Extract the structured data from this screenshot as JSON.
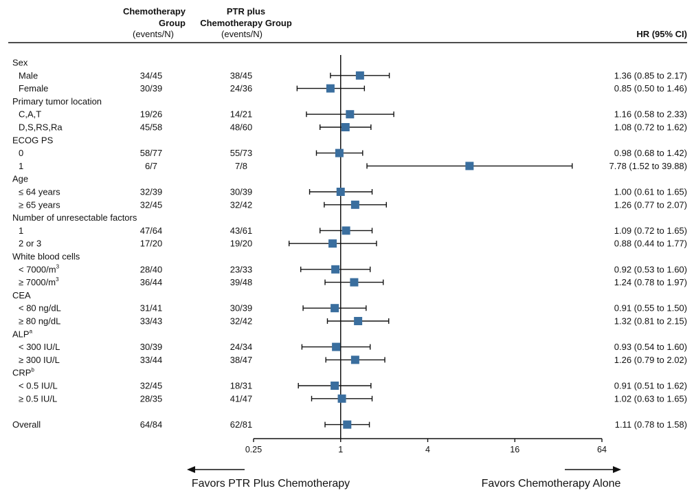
{
  "chart_data": {
    "type": "forest",
    "headers": {
      "chemo_line1": "Chemotherapy",
      "chemo_line2": "Group",
      "chemo_line3": "(events/N)",
      "ptr_line1": "PTR plus",
      "ptr_line2": "Chemotherapy Group",
      "ptr_line3": "(events/N)",
      "hr": "HR (95% CI)"
    },
    "x_axis": {
      "scale": "log2",
      "range": [
        0.25,
        64
      ],
      "ticks": [
        {
          "value": 0.25,
          "label": "0.25"
        },
        {
          "value": 1,
          "label": "1"
        },
        {
          "value": 4,
          "label": "4"
        },
        {
          "value": 16,
          "label": "16"
        },
        {
          "value": 64,
          "label": "64"
        }
      ],
      "reference_line": 1
    },
    "favors": {
      "left": "Favors PTR Plus Chemotherapy",
      "right": "Favors Chemotherapy Alone"
    },
    "marker_color": "#3a6e9e",
    "rows": [
      {
        "type": "group",
        "label": "Sex"
      },
      {
        "type": "item",
        "label": "Male",
        "chemo": "34/45",
        "ptr": "38/45",
        "hr": 1.36,
        "lo": 0.85,
        "hi": 2.17,
        "hr_text": "1.36 (0.85 to 2.17)"
      },
      {
        "type": "item",
        "label": "Female",
        "chemo": "30/39",
        "ptr": "24/36",
        "hr": 0.85,
        "lo": 0.5,
        "hi": 1.46,
        "hr_text": "0.85 (0.50 to 1.46)"
      },
      {
        "type": "group",
        "label": "Primary tumor location"
      },
      {
        "type": "item",
        "label": "C,A,T",
        "chemo": "19/26",
        "ptr": "14/21",
        "hr": 1.16,
        "lo": 0.58,
        "hi": 2.33,
        "hr_text": "1.16 (0.58 to 2.33)"
      },
      {
        "type": "item",
        "label": "D,S,RS,Ra",
        "chemo": "45/58",
        "ptr": "48/60",
        "hr": 1.08,
        "lo": 0.72,
        "hi": 1.62,
        "hr_text": "1.08 (0.72 to 1.62)"
      },
      {
        "type": "group",
        "label": "ECOG PS"
      },
      {
        "type": "item",
        "label": "0",
        "chemo": "58/77",
        "ptr": "55/73",
        "hr": 0.98,
        "lo": 0.68,
        "hi": 1.42,
        "hr_text": "0.98 (0.68 to 1.42)"
      },
      {
        "type": "item",
        "label": "1",
        "chemo": "6/7",
        "ptr": "7/8",
        "hr": 7.78,
        "lo": 1.52,
        "hi": 39.88,
        "hr_text": "7.78 (1.52 to 39.88)"
      },
      {
        "type": "group",
        "label": "Age"
      },
      {
        "type": "item",
        "label": "≤ 64 years",
        "chemo": "32/39",
        "ptr": "30/39",
        "hr": 1.0,
        "lo": 0.61,
        "hi": 1.65,
        "hr_text": "1.00 (0.61 to 1.65)"
      },
      {
        "type": "item",
        "label": "≥ 65 years",
        "chemo": "32/45",
        "ptr": "32/42",
        "hr": 1.26,
        "lo": 0.77,
        "hi": 2.07,
        "hr_text": "1.26 (0.77 to 2.07)"
      },
      {
        "type": "group",
        "label": "Number of unresectable factors"
      },
      {
        "type": "item",
        "label": "1",
        "chemo": "47/64",
        "ptr": "43/61",
        "hr": 1.09,
        "lo": 0.72,
        "hi": 1.65,
        "hr_text": "1.09 (0.72 to 1.65)"
      },
      {
        "type": "item",
        "label": "2 or 3",
        "chemo": "17/20",
        "ptr": "19/20",
        "hr": 0.88,
        "lo": 0.44,
        "hi": 1.77,
        "hr_text": "0.88 (0.44 to 1.77)"
      },
      {
        "type": "group",
        "label": "White blood cells"
      },
      {
        "type": "item",
        "label": "< 7000/m",
        "sup": "3",
        "chemo": "28/40",
        "ptr": "23/33",
        "hr": 0.92,
        "lo": 0.53,
        "hi": 1.6,
        "hr_text": "0.92 (0.53 to 1.60)"
      },
      {
        "type": "item",
        "label": "≥ 7000/m",
        "sup": "3",
        "chemo": "36/44",
        "ptr": "39/48",
        "hr": 1.24,
        "lo": 0.78,
        "hi": 1.97,
        "hr_text": "1.24 (0.78 to 1.97)"
      },
      {
        "type": "group",
        "label": "CEA"
      },
      {
        "type": "item",
        "label": "< 80 ng/dL",
        "chemo": "31/41",
        "ptr": "30/39",
        "hr": 0.91,
        "lo": 0.55,
        "hi": 1.5,
        "hr_text": "0.91 (0.55 to 1.50)"
      },
      {
        "type": "item",
        "label": "≥ 80 ng/dL",
        "chemo": "33/43",
        "ptr": "32/42",
        "hr": 1.32,
        "lo": 0.81,
        "hi": 2.15,
        "hr_text": "1.32 (0.81 to 2.15)"
      },
      {
        "type": "group",
        "label": "ALP",
        "sup": "a"
      },
      {
        "type": "item",
        "label": "< 300 IU/L",
        "chemo": "30/39",
        "ptr": "24/34",
        "hr": 0.93,
        "lo": 0.54,
        "hi": 1.6,
        "hr_text": "0.93 (0.54 to 1.60)"
      },
      {
        "type": "item",
        "label": "≥ 300 IU/L",
        "chemo": "33/44",
        "ptr": "38/47",
        "hr": 1.26,
        "lo": 0.79,
        "hi": 2.02,
        "hr_text": "1.26 (0.79 to 2.02)"
      },
      {
        "type": "group",
        "label": "CRP",
        "sup": "b"
      },
      {
        "type": "item",
        "label": "< 0.5 IU/L",
        "chemo": "32/45",
        "ptr": "18/31",
        "hr": 0.91,
        "lo": 0.51,
        "hi": 1.62,
        "hr_text": "0.91 (0.51 to 1.62)"
      },
      {
        "type": "item",
        "label": "≥ 0.5 IU/L",
        "chemo": "28/35",
        "ptr": "41/47",
        "hr": 1.02,
        "lo": 0.63,
        "hi": 1.65,
        "hr_text": "1.02 (0.63 to 1.65)"
      },
      {
        "type": "overall",
        "label": "Overall",
        "chemo": "64/84",
        "ptr": "62/81",
        "hr": 1.11,
        "lo": 0.78,
        "hi": 1.58,
        "hr_text": "1.11 (0.78 to 1.58)"
      }
    ]
  }
}
